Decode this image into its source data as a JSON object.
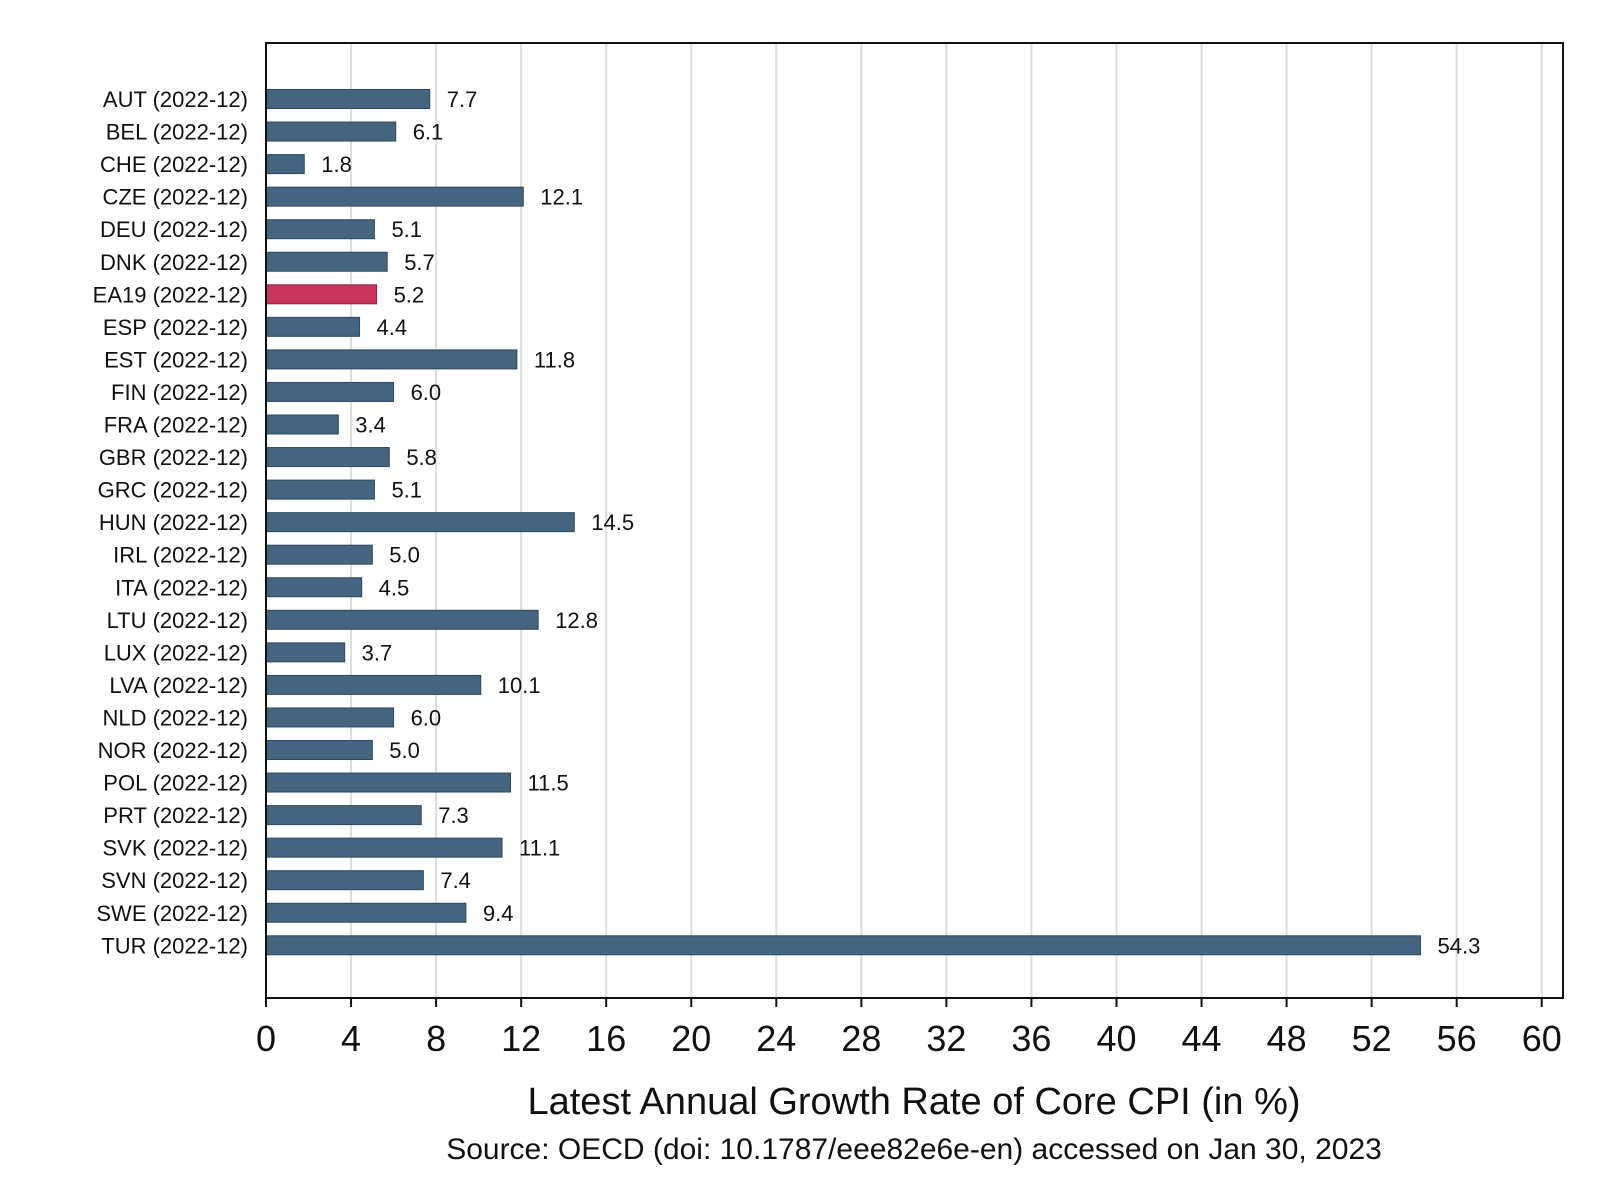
{
  "chart_data": {
    "type": "bar",
    "orientation": "horizontal",
    "categories": [
      "AUT (2022-12)",
      "BEL (2022-12)",
      "CHE (2022-12)",
      "CZE (2022-12)",
      "DEU (2022-12)",
      "DNK (2022-12)",
      "EA19 (2022-12)",
      "ESP (2022-12)",
      "EST (2022-12)",
      "FIN (2022-12)",
      "FRA (2022-12)",
      "GBR (2022-12)",
      "GRC (2022-12)",
      "HUN (2022-12)",
      "IRL (2022-12)",
      "ITA (2022-12)",
      "LTU (2022-12)",
      "LUX (2022-12)",
      "LVA (2022-12)",
      "NLD (2022-12)",
      "NOR (2022-12)",
      "POL (2022-12)",
      "PRT (2022-12)",
      "SVK (2022-12)",
      "SVN (2022-12)",
      "SWE (2022-12)",
      "TUR (2022-12)"
    ],
    "values": [
      7.7,
      6.1,
      1.8,
      12.1,
      5.1,
      5.7,
      5.2,
      4.4,
      11.8,
      6.0,
      3.4,
      5.8,
      5.1,
      14.5,
      5.0,
      4.5,
      12.8,
      3.7,
      10.1,
      6.0,
      5.0,
      11.5,
      7.3,
      11.1,
      7.4,
      9.4,
      54.3
    ],
    "value_labels": [
      "7.7",
      "6.1",
      "1.8",
      "12.1",
      "5.1",
      "5.7",
      "5.2",
      "4.4",
      "11.8",
      "6.0",
      "3.4",
      "5.8",
      "5.1",
      "14.5",
      "5.0",
      "4.5",
      "12.8",
      "3.7",
      "10.1",
      "6.0",
      "5.0",
      "11.5",
      "7.3",
      "11.1",
      "7.4",
      "9.4",
      "54.3"
    ],
    "highlight_category": "EA19 (2022-12)",
    "xlabel": "Latest Annual Growth Rate of Core CPI (in %)",
    "source": "Source: OECD (doi: 10.1787/eee82e6e-en) accessed on Jan 30, 2023",
    "xlim": [
      0,
      61
    ],
    "xticks": [
      0,
      4,
      8,
      12,
      16,
      20,
      24,
      28,
      32,
      36,
      40,
      44,
      48,
      52,
      56,
      60
    ],
    "xtick_labels": [
      "0",
      "4",
      "8",
      "12",
      "16",
      "20",
      "24",
      "28",
      "32",
      "36",
      "40",
      "44",
      "48",
      "52",
      "56",
      "60"
    ],
    "grid": true,
    "colors": {
      "bar": "#44647f",
      "bar_edge": "#2f4a61",
      "highlight": "#c9345a",
      "highlight_edge": "#8e2440",
      "grid": "#dddddd",
      "axis": "#111111"
    }
  }
}
